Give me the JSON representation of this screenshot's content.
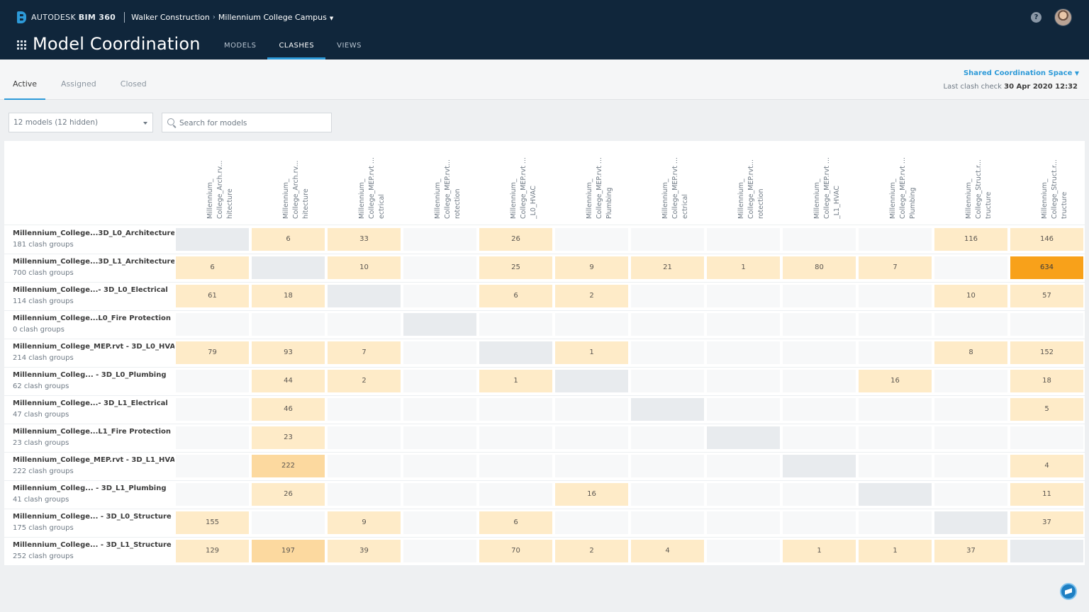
{
  "header": {
    "brand_prefix": "AUTODESK",
    "brand_product": "BIM 360",
    "breadcrumb_company": "Walker Construction",
    "breadcrumb_project": "Millennium College Campus",
    "app_title": "Model Coordination",
    "tabs": [
      {
        "label": "MODELS",
        "active": false
      },
      {
        "label": "CLASHES",
        "active": true
      },
      {
        "label": "VIEWS",
        "active": false
      }
    ],
    "help": "?"
  },
  "subheader": {
    "tabs": [
      {
        "label": "Active",
        "active": true
      },
      {
        "label": "Assigned",
        "active": false
      },
      {
        "label": "Closed",
        "active": false
      }
    ],
    "space_label": "Shared Coordination Space",
    "last_check_label": "Last clash check",
    "last_check_value": "30 Apr 2020 12:32"
  },
  "filters": {
    "models_select": "12 models (12 hidden)",
    "search_placeholder": "Search for models"
  },
  "columns": [
    "Millennium_\nCollege_Arch.rv...\nhitecture",
    "Millennium_\nCollege_Arch.rv...\nhitecture",
    "Millennium_\nCollege_MEP.rvt ...\nectrical",
    "Millennium_\nCollege_MEP.rvt...\nrotection",
    "Millennium_\nCollege_MEP.rvt ...\n_L0_HVAC",
    "Millennium_\nCollege_MEP.rvt ...\nPlumbing",
    "Millennium_\nCollege_MEP.rvt ...\nectrical",
    "Millennium_\nCollege_MEP.rvt...\nrotection",
    "Millennium_\nCollege_MEP.rvt ...\n_L1_HVAC",
    "Millennium_\nCollege_MEP.rvt ...\nPlumbing",
    "Millennium_\nCollege_Struct.r...\ntructure",
    "Millennium_\nCollege_Struct.r...\ntructure"
  ],
  "rows": [
    {
      "name": "Millennium_College...3D_L0_Architecture",
      "count": "181 clash groups",
      "cells": [
        "",
        "6",
        "33",
        "",
        "26",
        "",
        "",
        "",
        "",
        "",
        "116",
        "146"
      ]
    },
    {
      "name": "Millennium_College...3D_L1_Architecture",
      "count": "700 clash groups",
      "cells": [
        "6",
        "",
        "10",
        "",
        "25",
        "9",
        "21",
        "1",
        "80",
        "7",
        "",
        "634"
      ]
    },
    {
      "name": "Millennium_College...- 3D_L0_Electrical",
      "count": "114 clash groups",
      "cells": [
        "61",
        "18",
        "",
        "",
        "6",
        "2",
        "",
        "",
        "",
        "",
        "10",
        "57"
      ]
    },
    {
      "name": "Millennium_College...L0_Fire Protection",
      "count": "0 clash groups",
      "cells": [
        "",
        "",
        "",
        "",
        "",
        "",
        "",
        "",
        "",
        "",
        "",
        ""
      ]
    },
    {
      "name": "Millennium_College_MEP.rvt - 3D_L0_HVAC",
      "count": "214 clash groups",
      "cells": [
        "79",
        "93",
        "7",
        "",
        "",
        "1",
        "",
        "",
        "",
        "",
        "8",
        "152"
      ]
    },
    {
      "name": "Millennium_Colleg... - 3D_L0_Plumbing",
      "count": "62 clash groups",
      "cells": [
        "",
        "44",
        "2",
        "",
        "1",
        "",
        "",
        "",
        "",
        "16",
        "",
        "18"
      ]
    },
    {
      "name": "Millennium_College...- 3D_L1_Electrical",
      "count": "47 clash groups",
      "cells": [
        "",
        "46",
        "",
        "",
        "",
        "",
        "",
        "",
        "",
        "",
        "",
        "5"
      ]
    },
    {
      "name": "Millennium_College...L1_Fire Protection",
      "count": "23 clash groups",
      "cells": [
        "",
        "23",
        "",
        "",
        "",
        "",
        "",
        "",
        "",
        "",
        "",
        ""
      ]
    },
    {
      "name": "Millennium_College_MEP.rvt - 3D_L1_HVAC",
      "count": "222 clash groups",
      "cells": [
        "",
        "222",
        "",
        "",
        "",
        "",
        "",
        "",
        "",
        "",
        "",
        "4"
      ]
    },
    {
      "name": "Millennium_Colleg... - 3D_L1_Plumbing",
      "count": "41 clash groups",
      "cells": [
        "",
        "26",
        "",
        "",
        "",
        "16",
        "",
        "",
        "",
        "",
        "",
        "11"
      ]
    },
    {
      "name": "Millennium_College... - 3D_L0_Structure",
      "count": "175 clash groups",
      "cells": [
        "155",
        "",
        "9",
        "",
        "6",
        "",
        "",
        "",
        "",
        "",
        "",
        "37"
      ]
    },
    {
      "name": "Millennium_College... - 3D_L1_Structure",
      "count": "252 clash groups",
      "cells": [
        "129",
        "197",
        "39",
        "",
        "70",
        "2",
        "4",
        "",
        "1",
        "1",
        "37",
        ""
      ]
    }
  ],
  "colors": {
    "topbar": "#10263b",
    "accent": "#2d9ad8",
    "heat_low": "#feebc8",
    "heat_mid": "#fcd99f",
    "heat_high": "#f8a11a",
    "diagonal": "#e8ebee",
    "empty": "#f7f8f9"
  },
  "icons": {
    "apps": "apps-grid-icon",
    "help": "help-icon",
    "search": "search-icon",
    "fab": "learning-icon"
  }
}
